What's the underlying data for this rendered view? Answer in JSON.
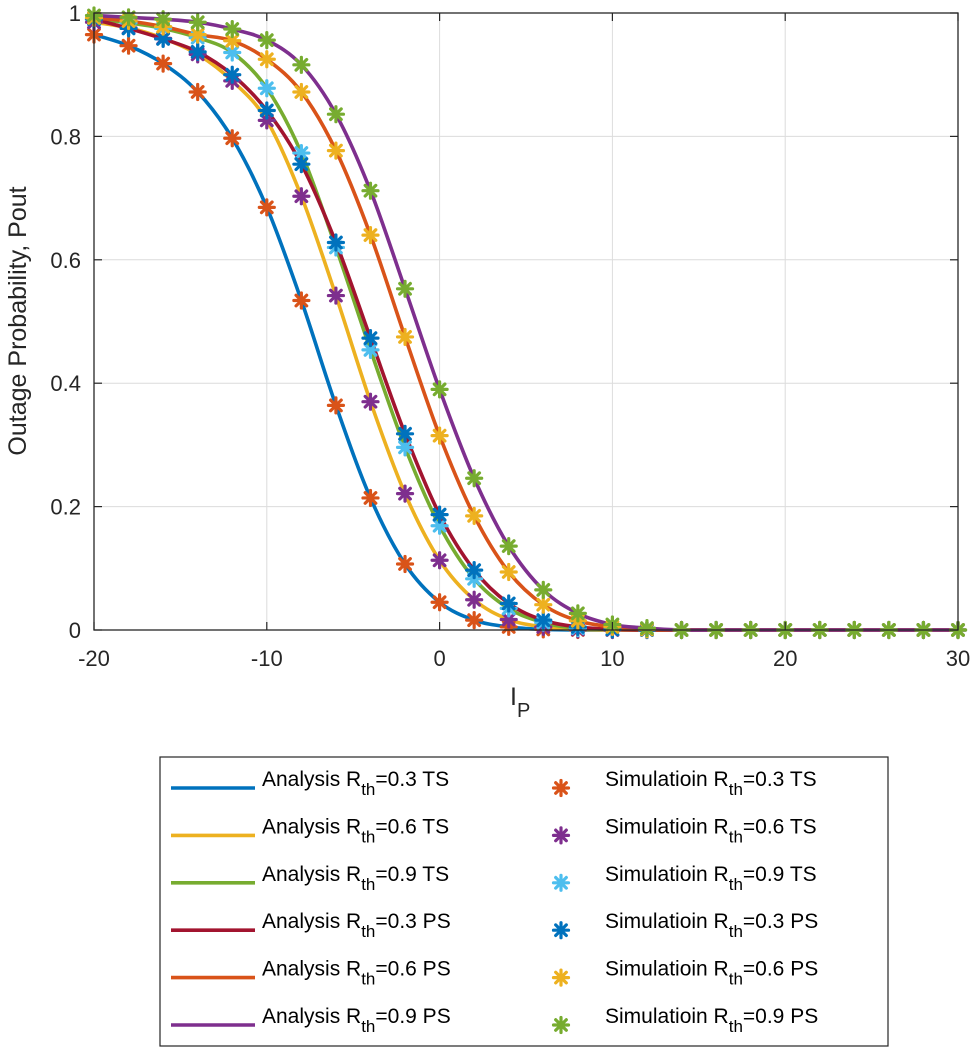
{
  "chart_data": {
    "type": "line",
    "xlabel": "I",
    "xlabel_sub": "P",
    "ylabel": "Outage Probability, Pout",
    "xlim": [
      -20,
      30
    ],
    "ylim": [
      0,
      1
    ],
    "grid": true,
    "xticks": [
      "-20",
      "-10",
      "0",
      "10",
      "20",
      "30"
    ],
    "yticks": [
      "0",
      "0.2",
      "0.4",
      "0.6",
      "0.8",
      "1"
    ],
    "legend_position": "below",
    "x": [
      -20,
      -18,
      -16,
      -14,
      -12,
      -10,
      -8,
      -6,
      -4,
      -2,
      0,
      2,
      4,
      6,
      8,
      10,
      12,
      14,
      16,
      18,
      20,
      22,
      24,
      26,
      28,
      30
    ],
    "series": [
      {
        "name": "Analysis R_th=0.3 TS",
        "kind": "line",
        "color": "#0072BD",
        "values": [
          0.965,
          0.947,
          0.918,
          0.872,
          0.797,
          0.685,
          0.534,
          0.364,
          0.214,
          0.107,
          0.045,
          0.016,
          0.005,
          0.001,
          0,
          0,
          0,
          0,
          0,
          0,
          0,
          0,
          0,
          0,
          0,
          0
        ]
      },
      {
        "name": "Analysis R_th=0.6 TS",
        "kind": "line",
        "color": "#EDB120",
        "values": [
          0.985,
          0.976,
          0.959,
          0.933,
          0.89,
          0.826,
          0.703,
          0.542,
          0.37,
          0.221,
          0.113,
          0.049,
          0.017,
          0.005,
          0.001,
          0,
          0,
          0,
          0,
          0,
          0,
          0,
          0,
          0,
          0,
          0
        ]
      },
      {
        "name": "Analysis R_th=0.9 TS",
        "kind": "line",
        "color": "#77AC30",
        "values": [
          0.99,
          0.984,
          0.975,
          0.96,
          0.936,
          0.878,
          0.773,
          0.62,
          0.454,
          0.296,
          0.169,
          0.083,
          0.035,
          0.012,
          0.003,
          0.001,
          0,
          0,
          0,
          0,
          0,
          0,
          0,
          0,
          0,
          0
        ]
      },
      {
        "name": "Analysis R_th=0.3 PS",
        "kind": "line",
        "color": "#A2142F",
        "values": [
          0.99,
          0.975,
          0.958,
          0.937,
          0.9,
          0.842,
          0.755,
          0.628,
          0.473,
          0.318,
          0.187,
          0.097,
          0.043,
          0.016,
          0.005,
          0.001,
          0,
          0,
          0,
          0,
          0,
          0,
          0,
          0,
          0,
          0
        ]
      },
      {
        "name": "Analysis R_th=0.6 PS",
        "kind": "line",
        "color": "#D95319",
        "values": [
          0.992,
          0.987,
          0.978,
          0.965,
          0.955,
          0.925,
          0.872,
          0.777,
          0.64,
          0.475,
          0.315,
          0.185,
          0.094,
          0.041,
          0.015,
          0.005,
          0.001,
          0,
          0,
          0,
          0,
          0,
          0,
          0,
          0,
          0
        ]
      },
      {
        "name": "Analysis R_th=0.9 PS",
        "kind": "line",
        "color": "#7E2F8E",
        "values": [
          0.996,
          0.993,
          0.99,
          0.985,
          0.974,
          0.956,
          0.916,
          0.836,
          0.712,
          0.553,
          0.39,
          0.246,
          0.136,
          0.065,
          0.027,
          0.009,
          0.003,
          0,
          0,
          0,
          0,
          0,
          0,
          0,
          0,
          0
        ]
      },
      {
        "name": "Simulatioin R_th=0.3 TS",
        "kind": "marker",
        "color": "#D95319",
        "values": [
          0.965,
          0.947,
          0.918,
          0.872,
          0.797,
          0.685,
          0.534,
          0.364,
          0.214,
          0.107,
          0.045,
          0.016,
          0.005,
          0.001,
          0,
          0,
          0,
          0,
          0,
          0,
          0,
          0,
          0,
          0,
          0,
          0
        ]
      },
      {
        "name": "Simulatioin R_th=0.6 TS",
        "kind": "marker",
        "color": "#7E2F8E",
        "values": [
          0.985,
          0.976,
          0.959,
          0.933,
          0.89,
          0.826,
          0.703,
          0.542,
          0.37,
          0.221,
          0.113,
          0.049,
          0.017,
          0.005,
          0.001,
          0,
          0,
          0,
          0,
          0,
          0,
          0,
          0,
          0,
          0,
          0
        ]
      },
      {
        "name": "Simulatioin R_th=0.9 TS",
        "kind": "marker",
        "color": "#4DBEEE",
        "values": [
          0.99,
          0.984,
          0.975,
          0.96,
          0.936,
          0.878,
          0.773,
          0.62,
          0.454,
          0.296,
          0.169,
          0.083,
          0.035,
          0.012,
          0.003,
          0.001,
          0,
          0,
          0,
          0,
          0,
          0,
          0,
          0,
          0,
          0
        ]
      },
      {
        "name": "Simulatioin R_th=0.3 PS",
        "kind": "marker",
        "color": "#0072BD",
        "values": [
          0.99,
          0.975,
          0.958,
          0.937,
          0.9,
          0.842,
          0.755,
          0.628,
          0.473,
          0.318,
          0.187,
          0.097,
          0.043,
          0.016,
          0.005,
          0.001,
          0,
          0,
          0,
          0,
          0,
          0,
          0,
          0,
          0,
          0
        ]
      },
      {
        "name": "Simulatioin R_th=0.6 PS",
        "kind": "marker",
        "color": "#EDB120",
        "values": [
          0.992,
          0.987,
          0.978,
          0.965,
          0.955,
          0.925,
          0.872,
          0.777,
          0.64,
          0.475,
          0.315,
          0.185,
          0.094,
          0.041,
          0.015,
          0.005,
          0.001,
          0,
          0,
          0,
          0,
          0,
          0,
          0,
          0,
          0
        ]
      },
      {
        "name": "Simulatioin R_th=0.9 PS",
        "kind": "marker",
        "color": "#77AC30",
        "values": [
          0.996,
          0.993,
          0.99,
          0.985,
          0.974,
          0.956,
          0.916,
          0.836,
          0.712,
          0.553,
          0.39,
          0.246,
          0.136,
          0.065,
          0.027,
          0.009,
          0.003,
          0,
          0,
          0,
          0,
          0,
          0,
          0,
          0,
          0
        ]
      }
    ],
    "legend": {
      "left": [
        {
          "pre": "Analysis  R",
          "sub": "th",
          "post": "=0.3  TS",
          "color": "#0072BD"
        },
        {
          "pre": "Analysis  R",
          "sub": "th",
          "post": "=0.6  TS",
          "color": "#EDB120"
        },
        {
          "pre": "Analysis  R",
          "sub": "th",
          "post": "=0.9  TS",
          "color": "#77AC30"
        },
        {
          "pre": "Analysis  R",
          "sub": "th",
          "post": "=0.3  PS",
          "color": "#A2142F"
        },
        {
          "pre": "Analysis R",
          "sub": "th",
          "post": "=0.6  PS",
          "color": "#D95319"
        },
        {
          "pre": "Analysis R",
          "sub": "th",
          "post": "=0.9  PS",
          "color": "#7E2F8E"
        }
      ],
      "right": [
        {
          "pre": "Simulatioin  R",
          "sub": "th",
          "post": "=0.3  TS",
          "color": "#D95319"
        },
        {
          "pre": "Simulatioin  R",
          "sub": "th",
          "post": "=0.6  TS",
          "color": "#7E2F8E"
        },
        {
          "pre": "Simulatioin  R",
          "sub": "th",
          "post": "=0.9  TS",
          "color": "#4DBEEE"
        },
        {
          "pre": "Simulatioin  R",
          "sub": "th",
          "post": "=0.3  PS",
          "color": "#0072BD"
        },
        {
          "pre": "Simulatioin R",
          "sub": "th",
          "post": "=0.6  PS",
          "color": "#EDB120"
        },
        {
          "pre": "Simulatioin  R",
          "sub": "th",
          "post": "=0.9  PS",
          "color": "#77AC30"
        }
      ]
    }
  }
}
